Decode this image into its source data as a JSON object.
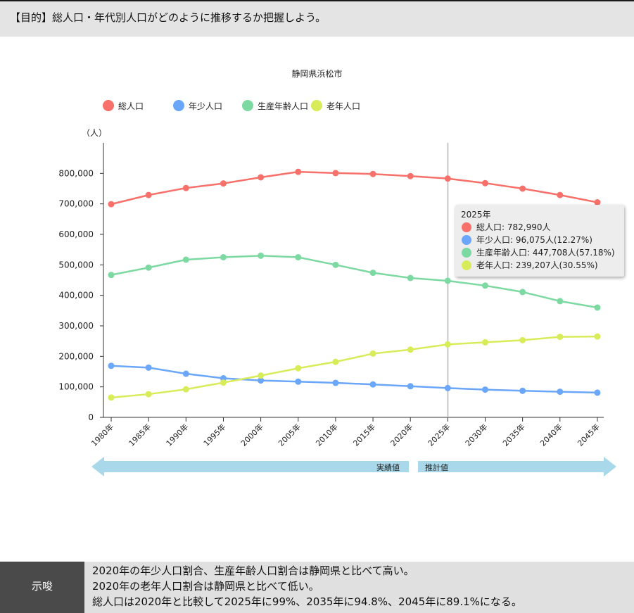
{
  "header": {
    "text": "【目的】総人口・年代別人口がどのように推移するか把握しよう。"
  },
  "chart_data": {
    "type": "line",
    "title": "静岡県浜松市",
    "ylabel": "（人）",
    "xlabel": "",
    "ylim": [
      0,
      900000
    ],
    "yticks": [
      "0",
      "100,000",
      "200,000",
      "300,000",
      "400,000",
      "500,000",
      "600,000",
      "700,000",
      "800,000"
    ],
    "x": [
      "1980年",
      "1985年",
      "1990年",
      "1995年",
      "2000年",
      "2005年",
      "2010年",
      "2015年",
      "2020年",
      "2025年",
      "2030年",
      "2035年",
      "2040年",
      "2045年"
    ],
    "series": [
      {
        "name": "総人口",
        "color": "#f8706a",
        "values": [
          699000,
          729000,
          752000,
          767000,
          787000,
          805000,
          801000,
          798000,
          791000,
          782990,
          768000,
          750000,
          729000,
          705000
        ]
      },
      {
        "name": "年少人口",
        "color": "#6aa6fa",
        "values": [
          169000,
          163000,
          143000,
          128000,
          121000,
          117000,
          113000,
          108000,
          102000,
          96075,
          91000,
          87000,
          84000,
          81000
        ]
      },
      {
        "name": "生産年齢人口",
        "color": "#7dd9a2",
        "values": [
          467000,
          491000,
          517000,
          525000,
          530000,
          525000,
          500000,
          474000,
          457000,
          447708,
          432000,
          411000,
          381000,
          360000
        ]
      },
      {
        "name": "老年人口",
        "color": "#d8ec5a",
        "values": [
          65000,
          76000,
          92000,
          114000,
          137000,
          161000,
          182000,
          209000,
          222000,
          239207,
          246000,
          253000,
          264000,
          265000
        ]
      }
    ],
    "highlight_index": 9,
    "legend_position": "top-left",
    "grid": false,
    "tooltip": {
      "title": "2025年",
      "rows": [
        {
          "text": "総人口: 782,990人",
          "color": "#f8706a"
        },
        {
          "text": "年少人口: 96,075人(12.27%)",
          "color": "#6aa6fa"
        },
        {
          "text": "生産年齢人口: 447,708人(57.18%)",
          "color": "#7dd9a2"
        },
        {
          "text": "老年人口: 239,207人(30.55%)",
          "color": "#d8ec5a"
        }
      ]
    },
    "periods": {
      "actual": "実績値",
      "projection": "推計値",
      "arrow_color": "#a8d8ea"
    }
  },
  "suggestion": {
    "label": "示唆",
    "lines": [
      "2020年の年少人口割合、生産年齢人口割合は静岡県と比べて高い。",
      "2020年の老年人口割合は静岡県と比べて低い。",
      "総人口は2020年と比較して2025年に99%、2035年に94.8%、2045年に89.1%になる。"
    ]
  }
}
